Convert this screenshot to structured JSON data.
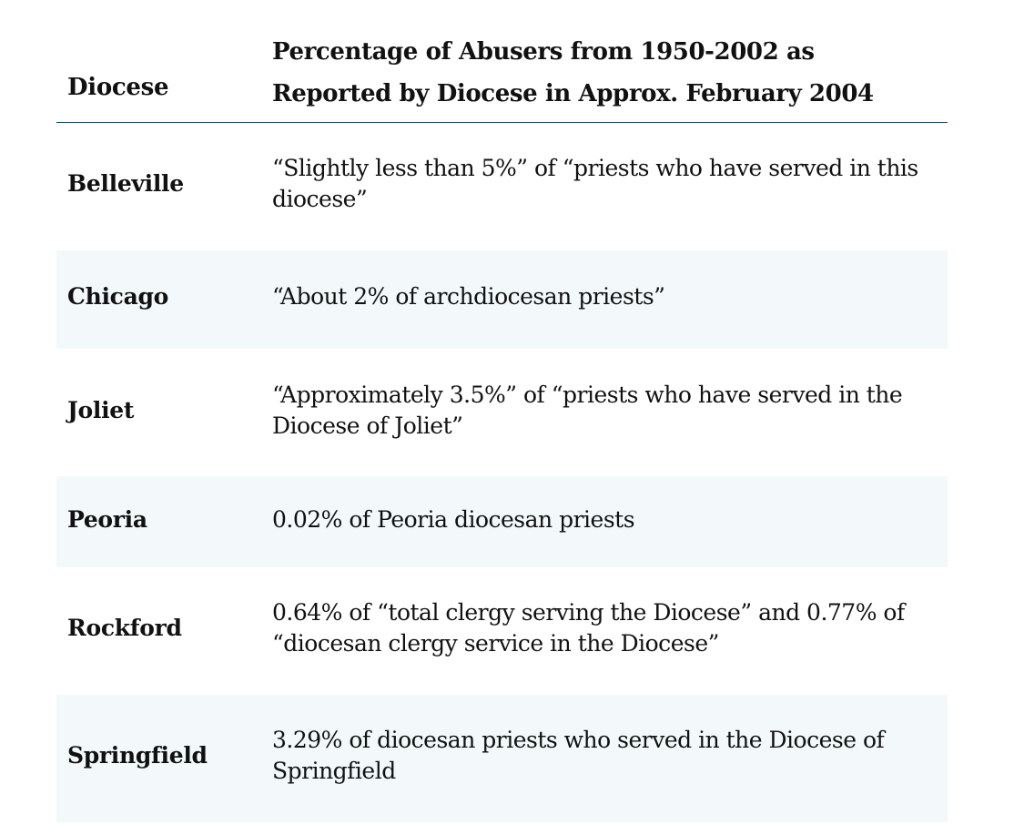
{
  "table": {
    "headers": {
      "diocese": "Diocese",
      "percentage": "Percentage of Abusers from 1950-2002 as Reported by Diocese in Approx. February 2004"
    },
    "rows": [
      {
        "diocese": "Belleville",
        "value": "“Slightly less than 5%” of “priests who have served in this diocese”"
      },
      {
        "diocese": "Chicago",
        "value": "“About 2% of archdiocesan priests”"
      },
      {
        "diocese": "Joliet",
        "value": "“Approximately 3.5%” of “priests who have served in the Diocese of Joliet”"
      },
      {
        "diocese": "Peoria",
        "value": "0.02% of Peoria diocesan priests"
      },
      {
        "diocese": "Rockford",
        "value": "0.64% of “total clergy serving the Diocese” and 0.77% of “diocesan clergy service in the Diocese”"
      },
      {
        "diocese": "Springfield",
        "value": "3.29% of diocesan priests who served in the Diocese of Springfield"
      }
    ]
  }
}
